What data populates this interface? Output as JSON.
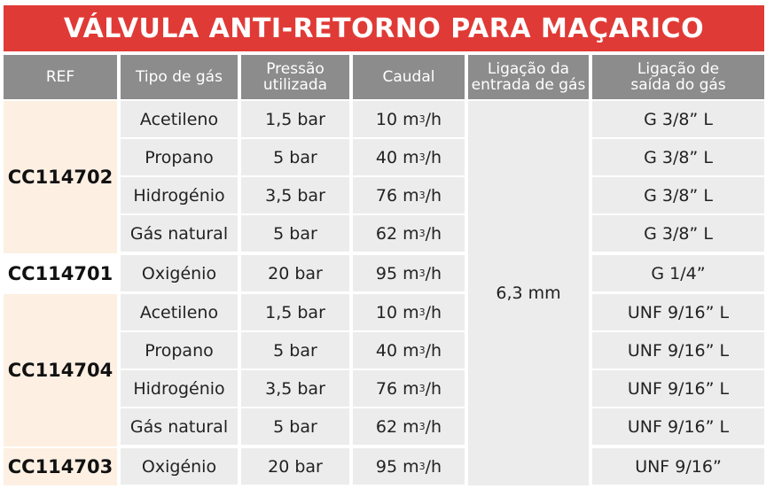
{
  "title": "VÁLVULA ANTI-RETORNO PARA MAÇARICO",
  "headers": {
    "ref": "REF",
    "tipo": "Tipo de gás",
    "pressao": "Pressão\nutilizada",
    "caudal": "Caudal",
    "entrada": "Ligação da\nentrada de gás",
    "saida": "Ligação de\nsaída do gás"
  },
  "refs": [
    "CC114702",
    "CC114701",
    "CC114704",
    "CC114703"
  ],
  "entrada_value": "6,3 mm",
  "caudal_unit": " m",
  "caudal_sup": "3",
  "caudal_suffix": " /h",
  "rows": [
    {
      "gas": "Acetileno",
      "pressao": "1,5 bar",
      "caudal": "10",
      "saida": "G 3/8” L"
    },
    {
      "gas": "Propano",
      "pressao": "5 bar",
      "caudal": "40",
      "saida": "G 3/8” L"
    },
    {
      "gas": "Hidrogénio",
      "pressao": "3,5 bar",
      "caudal": "76",
      "saida": "G 3/8” L"
    },
    {
      "gas": "Gás natural",
      "pressao": "5 bar",
      "caudal": "62",
      "saida": "G 3/8” L"
    },
    {
      "gas": "Oxigénio",
      "pressao": "20 bar",
      "caudal": "95",
      "saida": "G 1/4”"
    },
    {
      "gas": "Acetileno",
      "pressao": "1,5 bar",
      "caudal": "10",
      "saida": "UNF 9/16” L"
    },
    {
      "gas": "Propano",
      "pressao": "5 bar",
      "caudal": "40",
      "saida": "UNF 9/16” L"
    },
    {
      "gas": "Hidrogénio",
      "pressao": "3,5 bar",
      "caudal": "76",
      "saida": "UNF 9/16” L"
    },
    {
      "gas": "Gás natural",
      "pressao": "5 bar",
      "caudal": "62",
      "saida": "UNF 9/16” L"
    },
    {
      "gas": "Oxigénio",
      "pressao": "20 bar",
      "caudal": "95",
      "saida": "UNF 9/16”"
    }
  ]
}
